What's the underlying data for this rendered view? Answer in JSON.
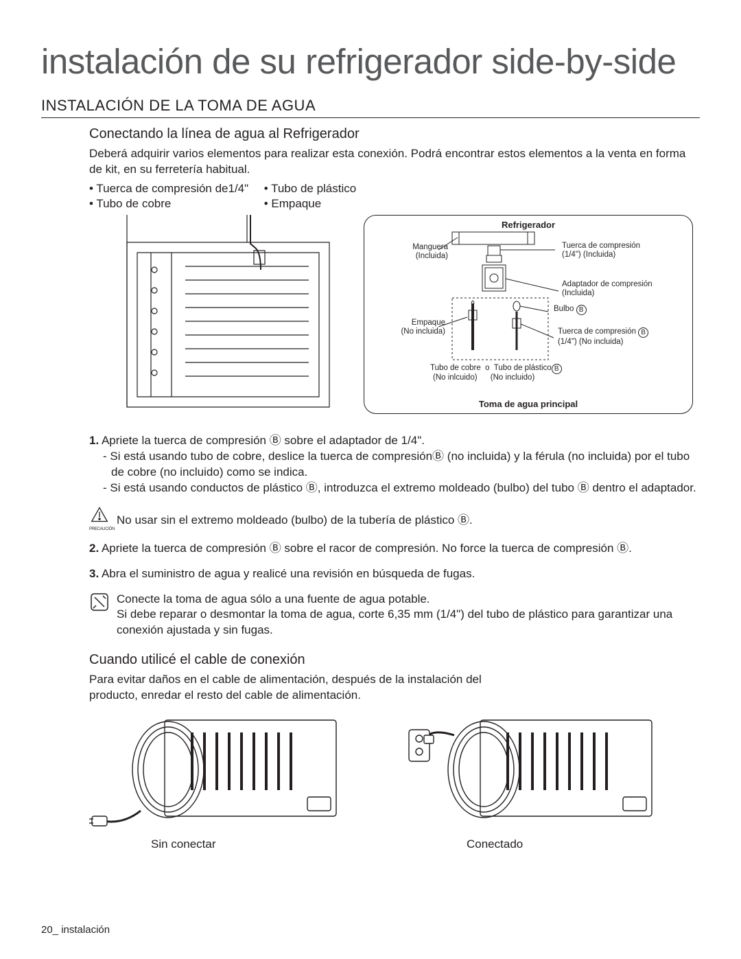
{
  "title": "instalación de su refrigerador side-by-side",
  "section": "INSTALACIÓN DE LA TOMA DE AGUA",
  "sub1": "Conectando la línea de agua al Refrigerador",
  "intro1": "Deberá adquirir varios elementos para realizar esta conexión. Podrá encontrar estos elementos a la venta en forma de kit, en su ferretería habitual.",
  "bullet1a": "• Tuerca de compresión de1/4\"",
  "bullet1b": "• Tubo de plástico",
  "bullet2a": "• Tubo de cobre",
  "bullet2b": "• Empaque",
  "callout_title": "Refrigerador",
  "callout_footer": "Toma de agua principal",
  "labels": {
    "manguera": "Manguera",
    "incluida": "(Incluida)",
    "tuerca_comp": "Tuerca de compresión",
    "tuerca_comp2": "(1/4\") (Incluida)",
    "adaptador": "Adaptador de compresión",
    "adaptador2": "(Incluida)",
    "empaque": "Empaque",
    "no_incluida": "(No incluida)",
    "bulbo": "Bulbo",
    "tuerca_b": "Tuerca de compresión",
    "tuerca_b2": "(1/4\") (No incluida)",
    "cobre": "Tubo de cobre",
    "o": "o",
    "plastico": "Tubo de plástico",
    "no_incluido": "(No inlcuido)",
    "no_incluido2": "(No incluido)"
  },
  "step1": "1. Apriete la tuerca de compresión  Ⓑ  sobre el adaptador de 1/4\".",
  "step1a": "- Si está usando tubo de cobre, deslice la tuerca de compresiónⒷ (no incluida) y la férula (no incluida) por el tubo de cobre (no incluido) como se indica.",
  "step1b": "- Si está usando conductos de plástico Ⓑ, introduzca el extremo moldeado (bulbo) del tubo  Ⓑ dentro el adaptador.",
  "caution_text": "No usar sin el extremo moldeado (bulbo) de la tubería de plástico Ⓑ.",
  "caution_label": "PRECAUCIÓN",
  "step2": "2. Apriete la tuerca de compresión  Ⓑ sobre el racor de compresión. No force la tuerca de compresión Ⓑ.",
  "step3": "3. Abra el suministro de agua y realicé una revisión en búsqueda de fugas.",
  "note1": "Conecte la toma de agua sólo a una fuente de agua potable.",
  "note2": "Si debe reparar o desmontar la toma de agua, corte 6,35 mm (1/4\") del tubo de plástico para garantizar una conexión ajustada y sin fugas.",
  "sub2": "Cuando utilicé el cable de conexión",
  "cable_p": "Para evitar daños en el cable de alimentación, después de la instalación del producto, enredar el resto del cable de alimentación.",
  "cap_unplugged": "Sin conectar",
  "cap_plugged": "Conectado",
  "page_no": "20_",
  "page_section": "instalación"
}
